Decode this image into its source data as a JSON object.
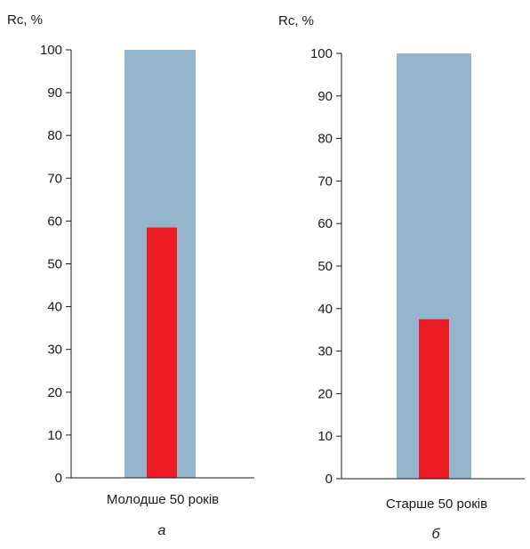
{
  "chart_data": [
    {
      "type": "bar",
      "panel_label": "а",
      "ylabel": "Rc, %",
      "ylim": [
        0,
        100
      ],
      "yticks": [
        0,
        10,
        20,
        30,
        40,
        50,
        60,
        70,
        80,
        90,
        100
      ],
      "categories": [
        "Молодше 50 років"
      ],
      "series": [
        {
          "values": [
            100
          ],
          "color": "#95b5cd"
        },
        {
          "values": [
            58.5
          ],
          "color": "#ee1c25"
        }
      ],
      "grid": false
    },
    {
      "type": "bar",
      "panel_label": "б",
      "ylabel": "Rc, %",
      "ylim": [
        0,
        100
      ],
      "yticks": [
        0,
        10,
        20,
        30,
        40,
        50,
        60,
        70,
        80,
        90,
        100
      ],
      "categories": [
        "Старше 50 років"
      ],
      "series": [
        {
          "values": [
            100
          ],
          "color": "#95b5cd"
        },
        {
          "values": [
            37.5
          ],
          "color": "#ee1c25"
        }
      ],
      "grid": false
    }
  ]
}
